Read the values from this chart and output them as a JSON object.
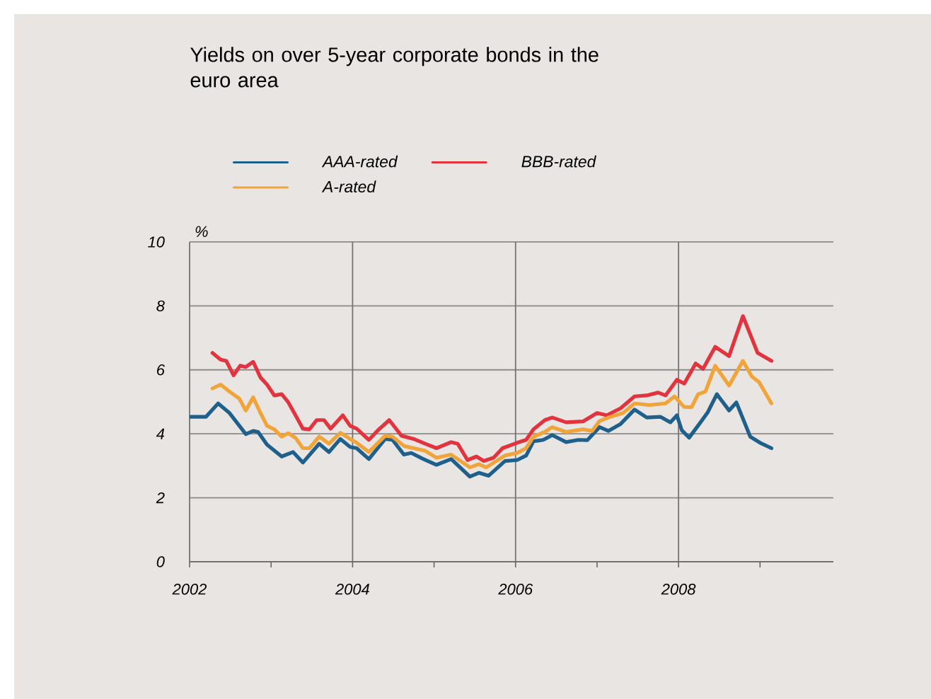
{
  "chart_data": {
    "type": "line",
    "title": "Yields on over 5-year corporate bonds in the euro area",
    "ylabel": "%",
    "xlim": [
      2002,
      2009.9
    ],
    "ylim": [
      0,
      10
    ],
    "xticks": [
      {
        "value": 2002,
        "label": "2002"
      },
      {
        "value": 2003,
        "label": null
      },
      {
        "value": 2004,
        "label": "2004"
      },
      {
        "value": 2005,
        "label": null
      },
      {
        "value": 2006,
        "label": "2006"
      },
      {
        "value": 2007,
        "label": null
      },
      {
        "value": 2008,
        "label": "2008"
      },
      {
        "value": 2009,
        "label": null
      }
    ],
    "yticks": [
      0,
      2,
      4,
      6,
      8,
      10
    ],
    "grid": true,
    "legend": "top",
    "line_style": "solid",
    "marker": "none",
    "series": [
      {
        "name": "AAA-rated",
        "color": "#1f5f8b",
        "x": [
          2002.0,
          2002.2,
          2002.35,
          2002.49,
          2002.69,
          2002.78,
          2002.84,
          2002.95,
          2003.13,
          2003.27,
          2003.39,
          2003.59,
          2003.71,
          2003.85,
          2003.97,
          2004.05,
          2004.2,
          2004.4,
          2004.49,
          2004.63,
          2004.72,
          2004.86,
          2005.03,
          2005.21,
          2005.44,
          2005.55,
          2005.67,
          2005.87,
          2006.02,
          2006.13,
          2006.22,
          2006.34,
          2006.45,
          2006.62,
          2006.77,
          2006.88,
          2007.03,
          2007.14,
          2007.29,
          2007.46,
          2007.61,
          2007.78,
          2007.9,
          2007.98,
          2008.04,
          2008.13,
          2008.27,
          2008.36,
          2008.47,
          2008.62,
          2008.71,
          2008.88,
          2009.0,
          2009.14
        ],
        "values": [
          4.53,
          4.53,
          4.95,
          4.65,
          3.99,
          4.09,
          4.06,
          3.66,
          3.29,
          3.43,
          3.1,
          3.69,
          3.43,
          3.84,
          3.59,
          3.55,
          3.21,
          3.84,
          3.81,
          3.35,
          3.4,
          3.22,
          3.03,
          3.21,
          2.66,
          2.78,
          2.69,
          3.15,
          3.18,
          3.32,
          3.77,
          3.81,
          3.96,
          3.74,
          3.81,
          3.8,
          4.21,
          4.09,
          4.31,
          4.76,
          4.51,
          4.53,
          4.36,
          4.58,
          4.11,
          3.88,
          4.36,
          4.68,
          5.24,
          4.73,
          4.98,
          3.91,
          3.72,
          3.55
        ]
      },
      {
        "name": "BBB-rated",
        "color": "#e2343f",
        "x": [
          2002.28,
          2002.38,
          2002.45,
          2002.54,
          2002.62,
          2002.69,
          2002.78,
          2002.87,
          2002.95,
          2003.04,
          2003.13,
          2003.21,
          2003.3,
          2003.39,
          2003.47,
          2003.56,
          2003.65,
          2003.73,
          2003.88,
          2003.97,
          2004.05,
          2004.2,
          2004.31,
          2004.45,
          2004.6,
          2004.75,
          2004.89,
          2005.03,
          2005.21,
          2005.29,
          2005.41,
          2005.52,
          2005.61,
          2005.73,
          2005.84,
          2006.02,
          2006.13,
          2006.22,
          2006.36,
          2006.45,
          2006.62,
          2006.83,
          2007.0,
          2007.12,
          2007.29,
          2007.46,
          2007.61,
          2007.75,
          2007.84,
          2007.98,
          2008.07,
          2008.21,
          2008.3,
          2008.45,
          2008.62,
          2008.79,
          2008.97,
          2009.14
        ],
        "values": [
          6.53,
          6.32,
          6.28,
          5.83,
          6.13,
          6.09,
          6.25,
          5.76,
          5.54,
          5.2,
          5.24,
          4.99,
          4.58,
          4.16,
          4.14,
          4.43,
          4.43,
          4.16,
          4.58,
          4.25,
          4.16,
          3.81,
          4.11,
          4.43,
          3.94,
          3.84,
          3.69,
          3.55,
          3.74,
          3.69,
          3.18,
          3.29,
          3.15,
          3.25,
          3.55,
          3.72,
          3.81,
          4.14,
          4.43,
          4.51,
          4.36,
          4.39,
          4.65,
          4.58,
          4.8,
          5.17,
          5.2,
          5.29,
          5.2,
          5.69,
          5.57,
          6.2,
          6.03,
          6.72,
          6.43,
          7.68,
          6.53,
          6.28
        ]
      },
      {
        "name": "A-rated",
        "color": "#f0a43a",
        "x": [
          2002.28,
          2002.38,
          2002.49,
          2002.61,
          2002.69,
          2002.78,
          2002.87,
          2002.95,
          2003.04,
          2003.13,
          2003.21,
          2003.3,
          2003.39,
          2003.47,
          2003.59,
          2003.71,
          2003.85,
          2003.97,
          2004.05,
          2004.2,
          2004.4,
          2004.49,
          2004.63,
          2004.75,
          2004.89,
          2005.03,
          2005.21,
          2005.44,
          2005.55,
          2005.64,
          2005.87,
          2006.02,
          2006.13,
          2006.22,
          2006.36,
          2006.45,
          2006.62,
          2006.83,
          2006.94,
          2007.03,
          2007.14,
          2007.32,
          2007.46,
          2007.64,
          2007.84,
          2007.95,
          2008.07,
          2008.16,
          2008.24,
          2008.33,
          2008.45,
          2008.62,
          2008.79,
          2008.9,
          2008.99,
          2009.14
        ],
        "values": [
          5.42,
          5.54,
          5.32,
          5.1,
          4.73,
          5.14,
          4.65,
          4.25,
          4.14,
          3.91,
          4.02,
          3.87,
          3.55,
          3.55,
          3.91,
          3.69,
          4.03,
          3.84,
          3.72,
          3.43,
          3.94,
          3.91,
          3.62,
          3.55,
          3.47,
          3.25,
          3.35,
          2.95,
          3.05,
          2.95,
          3.32,
          3.4,
          3.55,
          3.91,
          4.06,
          4.21,
          4.06,
          4.14,
          4.09,
          4.4,
          4.51,
          4.65,
          4.95,
          4.9,
          4.95,
          5.17,
          4.84,
          4.83,
          5.24,
          5.32,
          6.13,
          5.51,
          6.28,
          5.79,
          5.61,
          4.95
        ]
      }
    ]
  }
}
